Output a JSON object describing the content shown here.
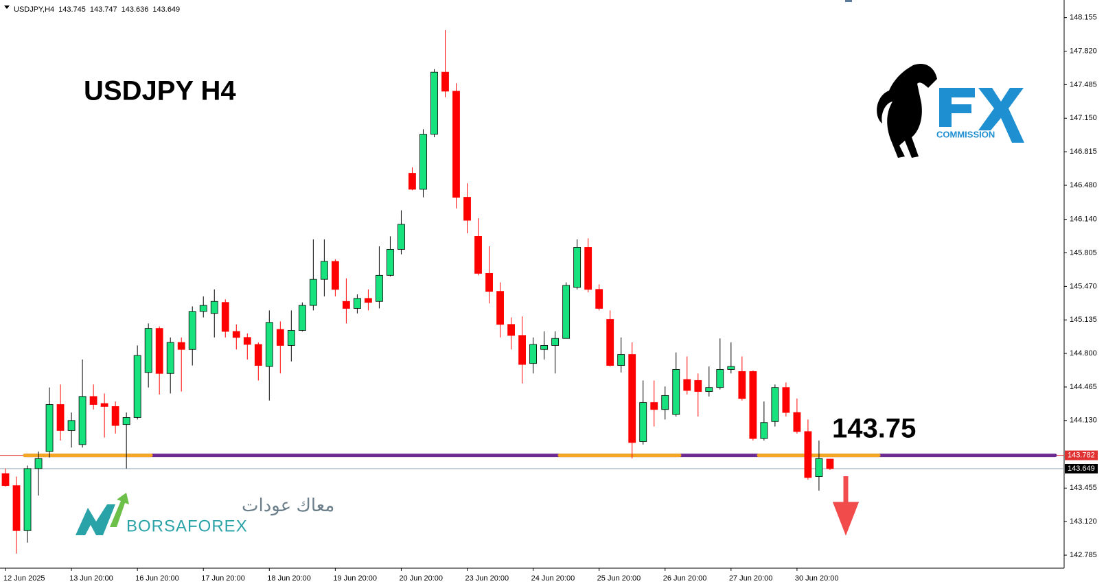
{
  "chart_data": {
    "type": "candlestick",
    "header": "USDJPY,H4",
    "title": "USDJPY  H4",
    "annotation": "143.75",
    "logo_fx": "FX",
    "logo_fx_sub": "COMMISSION",
    "logo_borsa": "BORSAFOREX",
    "logo_arabic": "معاك عودات",
    "up_color": "#17e27d",
    "down_color": "#ff0000",
    "level": 143.782,
    "level_color": "#6b2a8f",
    "segment_color": "#f5a623",
    "ylim": [
      142.655,
      148.331
    ],
    "xlim": [
      -0.5,
      96.3
    ],
    "yticks": [
      148.155,
      {
        "value": 147.82,
        "label": "147.820"
      },
      147.485,
      {
        "value": 147.15,
        "label": "147.150"
      },
      146.815,
      {
        "value": 146.48,
        "label": "146.480"
      },
      {
        "value": 146.14,
        "label": "146.140"
      },
      145.805,
      {
        "value": 145.47,
        "label": "145.470"
      },
      145.135,
      {
        "value": 144.8,
        "label": "144.800"
      },
      144.465,
      {
        "value": 144.13,
        "label": "144.130"
      },
      143.455,
      {
        "value": 143.12,
        "label": "143.120"
      },
      142.785
    ],
    "xticks": [
      {
        "value": 0,
        "label": "12 Jun 2025"
      },
      {
        "value": 6,
        "label": "13 Jun 20:00"
      },
      {
        "value": 12,
        "label": "16 Jun 20:00"
      },
      {
        "value": 18,
        "label": "17 Jun 20:00"
      },
      {
        "value": 24,
        "label": "18 Jun 20:00"
      },
      {
        "value": 30,
        "label": "19 Jun 20:00"
      },
      {
        "value": 36,
        "label": "20 Jun 20:00"
      },
      {
        "value": 42,
        "label": "23 Jun 20:00"
      },
      {
        "value": 48,
        "label": "24 Jun 20:00"
      },
      {
        "value": 54,
        "label": "25 Jun 20:00"
      },
      {
        "value": 60,
        "label": "26 Jun 20:00"
      },
      {
        "value": 66,
        "label": "27 Jun 20:00"
      },
      {
        "value": 72,
        "label": "30 Jun 20:00"
      }
    ],
    "ohlc": [
      [
        143.6,
        143.65,
        143.47,
        143.48
      ],
      [
        143.48,
        143.57,
        142.8,
        143.03
      ],
      [
        143.03,
        143.68,
        142.91,
        143.65
      ],
      [
        143.65,
        143.82,
        143.38,
        143.75
      ],
      [
        143.82,
        144.46,
        143.76,
        144.29
      ],
      [
        144.29,
        144.49,
        143.93,
        144.03
      ],
      [
        144.03,
        144.21,
        143.86,
        144.13
      ],
      [
        143.89,
        144.74,
        143.86,
        144.37
      ],
      [
        144.37,
        144.49,
        144.24,
        144.29
      ],
      [
        144.3,
        144.4,
        143.96,
        144.27
      ],
      [
        144.27,
        144.32,
        144.0,
        144.08
      ],
      [
        144.09,
        144.21,
        143.65,
        144.16
      ],
      [
        144.16,
        144.88,
        144.14,
        144.78
      ],
      [
        144.61,
        145.1,
        144.46,
        145.05
      ],
      [
        145.05,
        145.07,
        144.39,
        144.6
      ],
      [
        144.6,
        144.96,
        144.4,
        144.91
      ],
      [
        144.91,
        144.96,
        144.42,
        144.84
      ],
      [
        144.84,
        145.27,
        144.68,
        145.22
      ],
      [
        145.22,
        145.37,
        145.16,
        145.28
      ],
      [
        145.2,
        145.44,
        144.96,
        145.32
      ],
      [
        145.31,
        145.34,
        144.96,
        145.02
      ],
      [
        145.02,
        145.09,
        144.84,
        144.96
      ],
      [
        144.96,
        145.0,
        144.74,
        144.89
      ],
      [
        144.89,
        144.91,
        144.53,
        144.68
      ],
      [
        144.67,
        145.23,
        144.33,
        145.11
      ],
      [
        145.04,
        145.12,
        144.6,
        144.88
      ],
      [
        144.88,
        145.23,
        144.72,
        145.03
      ],
      [
        145.03,
        145.31,
        145.02,
        145.28
      ],
      [
        145.28,
        145.94,
        145.23,
        145.54
      ],
      [
        145.54,
        145.94,
        145.37,
        145.72
      ],
      [
        145.72,
        145.74,
        145.37,
        145.44
      ],
      [
        145.32,
        145.55,
        145.1,
        145.25
      ],
      [
        145.25,
        145.39,
        145.2,
        145.35
      ],
      [
        145.35,
        145.44,
        145.23,
        145.31
      ],
      [
        145.32,
        145.87,
        145.25,
        145.58
      ],
      [
        145.58,
        145.97,
        145.57,
        145.84
      ],
      [
        145.84,
        146.23,
        145.79,
        146.09
      ],
      [
        146.6,
        146.66,
        146.43,
        146.44
      ],
      [
        146.44,
        147.04,
        146.36,
        146.99
      ],
      [
        146.99,
        147.64,
        146.96,
        147.61
      ],
      [
        147.61,
        148.03,
        147.36,
        147.42
      ],
      [
        147.42,
        147.5,
        146.25,
        146.36
      ],
      [
        146.36,
        146.5,
        146.0,
        146.13
      ],
      [
        145.97,
        146.15,
        145.58,
        145.6
      ],
      [
        145.6,
        145.87,
        145.3,
        145.42
      ],
      [
        145.42,
        145.51,
        144.96,
        145.09
      ],
      [
        145.09,
        145.16,
        144.84,
        144.98
      ],
      [
        144.98,
        145.17,
        144.5,
        144.69
      ],
      [
        144.7,
        144.96,
        144.6,
        144.89
      ],
      [
        144.84,
        145.02,
        144.74,
        144.88
      ],
      [
        144.88,
        145.02,
        144.6,
        144.95
      ],
      [
        144.95,
        145.51,
        144.95,
        145.48
      ],
      [
        145.46,
        145.94,
        145.44,
        145.86
      ],
      [
        145.86,
        145.95,
        145.41,
        145.44
      ],
      [
        145.44,
        145.49,
        145.23,
        145.25
      ],
      [
        145.14,
        145.23,
        144.67,
        144.68
      ],
      [
        144.68,
        144.96,
        144.61,
        144.79
      ],
      [
        144.79,
        144.91,
        143.75,
        143.91
      ],
      [
        143.92,
        144.53,
        143.89,
        144.31
      ],
      [
        144.31,
        144.53,
        144.07,
        144.24
      ],
      [
        144.24,
        144.47,
        144.14,
        144.38
      ],
      [
        144.19,
        144.81,
        144.17,
        144.64
      ],
      [
        144.54,
        144.77,
        144.39,
        144.43
      ],
      [
        144.53,
        144.6,
        144.17,
        144.42
      ],
      [
        144.42,
        144.67,
        144.37,
        144.46
      ],
      [
        144.46,
        144.95,
        144.44,
        144.64
      ],
      [
        144.64,
        144.91,
        144.6,
        144.67
      ],
      [
        144.62,
        144.77,
        144.33,
        144.35
      ],
      [
        144.62,
        144.63,
        143.93,
        143.95
      ],
      [
        143.95,
        144.32,
        143.93,
        144.11
      ],
      [
        144.12,
        144.49,
        144.07,
        144.46
      ],
      [
        144.46,
        144.51,
        144.17,
        144.21
      ],
      [
        144.21,
        144.35,
        144.0,
        144.02
      ],
      [
        144.02,
        144.14,
        143.54,
        143.56
      ],
      [
        143.57,
        143.93,
        143.43,
        143.75
      ],
      [
        143.745,
        143.747,
        143.636,
        143.649
      ]
    ]
  }
}
